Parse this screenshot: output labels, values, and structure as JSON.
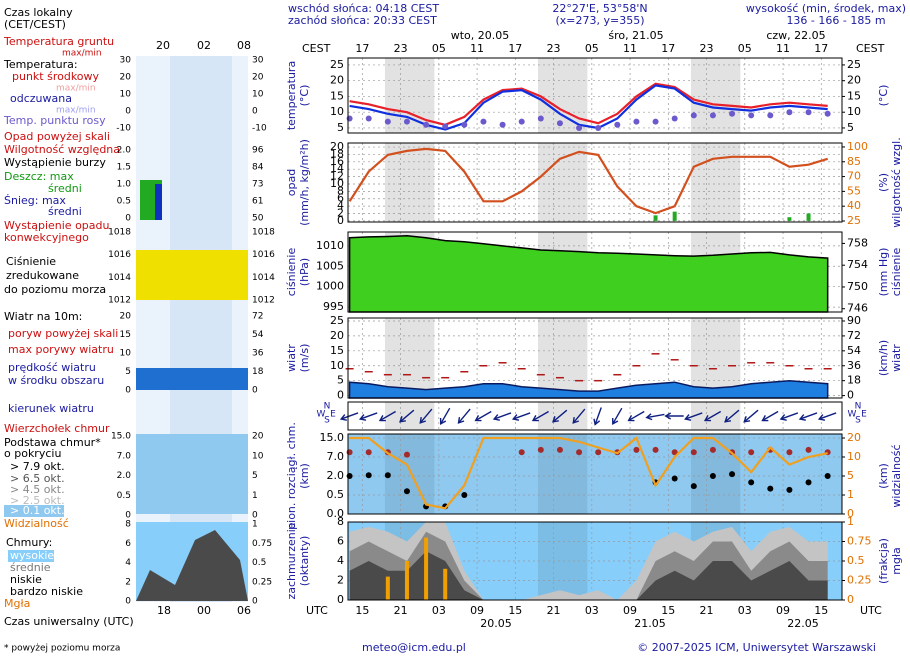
{
  "header": {
    "sunrise": "wschód słońca: 04:18 CEST",
    "sunset": "zachód słońca: 20:33 CEST",
    "coords": "22°27'E, 53°58'N",
    "grid": "(x=273, y=355)",
    "height_title": "wysokość (min, środek, max)",
    "height": "136 - 166 - 185 m",
    "local_time": "Czas lokalny",
    "local_zone": "(CET/CEST)",
    "day1": "wto, 20.05",
    "day2": "śro, 21.05",
    "day3": "czw, 22.05",
    "cest": "CEST",
    "utc": "UTC",
    "date1": "20.05",
    "date2": "21.05",
    "date3": "22.05",
    "email": "meteo@icm.edu.pl",
    "copyright": "© 2007-2025 ICM, Uniwersytet Warszawski",
    "utc_time": "Czas uniwersalny (UTC)",
    "footnote": "* powyżej poziomu morza"
  },
  "legend": {
    "top_times": [
      "20",
      "02",
      "08"
    ],
    "bottom_times": [
      "18",
      "00",
      "06"
    ],
    "ground_temp": "Temperatura gruntu",
    "maxmin": "max/min",
    "temp": "Temperatura:",
    "mid": "punkt środkowy",
    "perceived": "odczuwana",
    "dew": "Temp. punktu rosy",
    "over": "Opad powyżej skali",
    "humidity": "Wilgotność względna",
    "storm": "Wystąpienie burzy",
    "rain_max": "Deszcz: max",
    "avg": "średni",
    "snow_max": "Śnieg: max",
    "conv1": "Wystąpienie opadu",
    "conv2": "konwekcyjnego",
    "press1": "Ciśnienie",
    "press2": "zredukowane",
    "press3": "do poziomu morza",
    "wind": "Wiatr na 10m:",
    "gust_over": "poryw powyżej skali",
    "gust": "max porywy wiatru",
    "speed1": "prędkość wiatru",
    "speed2": "w środku obszaru",
    "dir": "kierunek wiatru",
    "tops": "Wierzchołek chmur",
    "base1": "Podstawa chmur*",
    "base2": "o pokryciu",
    "ok1": "> 7.9 okt.",
    "ok2": "> 6.5 okt.",
    "ok3": "> 4.5 okt.",
    "ok4": "> 2.5 okt.",
    "ok5": "> 0.1 okt.",
    "vis": "Widzialność",
    "clouds": "Chmury:",
    "high": "wysokie",
    "medium": "średnie",
    "low": "niskie",
    "vlow": "bardzo niskie",
    "fog": "Mgła",
    "compass": [
      "N",
      "W",
      "E",
      "S"
    ],
    "ticks": [
      {
        "left": [
          "30",
          "20",
          "10",
          "0",
          "-10"
        ],
        "right": [
          "30",
          "20",
          "10",
          "0",
          "-10"
        ]
      },
      {
        "left": [
          "2.0",
          "1.5",
          "1.0",
          "0.5",
          "0"
        ],
        "right": [
          "96",
          "84",
          "73",
          "61",
          "50"
        ]
      },
      {
        "left": [
          "1018",
          "1016",
          "1014",
          "1012"
        ],
        "right": [
          "1018",
          "1016",
          "1014",
          "1012"
        ]
      },
      {
        "left": [
          "20",
          "15",
          "10",
          "5",
          "0"
        ],
        "right": [
          "72",
          "54",
          "36",
          "18",
          "0"
        ]
      },
      {
        "left": [
          "15.0",
          "7.0",
          "2.0",
          "0.5",
          "0"
        ],
        "right": [
          "20",
          "10",
          "5",
          "1",
          "0"
        ]
      },
      {
        "left": [
          "8",
          "6",
          "4",
          "2",
          "0"
        ],
        "right": [
          "1",
          "0.75",
          "0.5",
          "0.25",
          "0"
        ]
      }
    ]
  },
  "chart_data": {
    "type": "meteogram",
    "x": [
      15,
      18,
      21,
      24,
      27,
      30,
      33,
      36,
      39,
      42,
      45,
      48,
      51,
      54,
      57,
      60,
      63,
      66,
      69,
      72,
      75,
      78,
      81,
      84,
      87,
      90
    ],
    "xlim": [
      14.75,
      92.25
    ],
    "xticks": [
      17,
      23,
      {
        "value": 29,
        "label": "05"
      },
      {
        "value": 35,
        "label": "11"
      },
      {
        "value": 41,
        "label": "17"
      },
      {
        "value": 47,
        "label": "23"
      },
      {
        "value": 53,
        "label": "05"
      },
      {
        "value": 59,
        "label": "11"
      },
      {
        "value": 65,
        "label": "17"
      },
      {
        "value": 71,
        "label": "23"
      },
      {
        "value": 77,
        "label": "05"
      },
      {
        "value": 83,
        "label": "11"
      },
      {
        "value": 89,
        "label": "17"
      }
    ],
    "x2ticks": [
      {
        "value": 17,
        "label": "15"
      },
      {
        "value": 23,
        "label": "21"
      },
      {
        "value": 29,
        "label": "03"
      },
      {
        "value": 35,
        "label": "09"
      },
      {
        "value": 41,
        "label": "15"
      },
      {
        "value": 47,
        "label": "21"
      },
      {
        "value": 53,
        "label": "03"
      },
      {
        "value": 59,
        "label": "09"
      },
      {
        "value": 65,
        "label": "15"
      },
      {
        "value": 71,
        "label": "21"
      },
      {
        "value": 77,
        "label": "03"
      },
      {
        "value": 83,
        "label": "09"
      },
      {
        "value": 89,
        "label": "15"
      }
    ],
    "night": [
      [
        20.55,
        28.3
      ],
      [
        44.55,
        52.3
      ],
      [
        68.55,
        76.3
      ]
    ],
    "grid": true,
    "panels": [
      {
        "ylabel": [
          "temperatura",
          "(°C)"
        ],
        "y2label": [
          "(°C)"
        ],
        "ylim": [
          3.4,
          27.2
        ],
        "yticks": [
          5,
          10,
          15,
          20,
          25
        ],
        "y2lim": [
          3.4,
          27.2
        ],
        "y2ticks": [
          5,
          10,
          15,
          20,
          25
        ],
        "background": "#ffffff",
        "series": [
          {
            "style": "line",
            "color": "#e8202a",
            "values": [
              13.5,
              12.5,
              11,
              10,
              7.5,
              6,
              8.5,
              14,
              17,
              17.5,
              15,
              11,
              8,
              6.5,
              9.5,
              15,
              19,
              18,
              14,
              12.5,
              12,
              11.5,
              12.5,
              13,
              12.5,
              12
            ]
          },
          {
            "style": "line",
            "color": "#1030e0",
            "values": [
              12,
              11,
              9.5,
              8.5,
              6,
              4.5,
              6.5,
              13,
              16.5,
              17,
              14,
              9.5,
              6,
              5,
              8,
              14,
              18.5,
              17.5,
              13,
              11.5,
              11,
              10.5,
              11.5,
              12,
              11.5,
              11
            ]
          },
          {
            "style": "dots",
            "color": "#6a5acd",
            "values": [
              8,
              8,
              7,
              7,
              6,
              5.5,
              6,
              7,
              6,
              7,
              8,
              6.5,
              5,
              5,
              6,
              7,
              7,
              8,
              9,
              9,
              9.5,
              9,
              9,
              10,
              10,
              9.5
            ]
          }
        ]
      },
      {
        "ylabel": [
          "opad",
          "(mm/h, kg/m²h)"
        ],
        "y2label": [
          "(%)",
          "wilgotność wzgl."
        ],
        "ylim": [
          -0.3,
          21.1
        ],
        "yticks": [
          0,
          2,
          4,
          6,
          8,
          10,
          12,
          14,
          16,
          18,
          20
        ],
        "y2lim": [
          24,
          104
        ],
        "y2ticks": [
          25,
          40,
          55,
          70,
          85,
          100
        ],
        "background": "#ffffff",
        "series": [
          {
            "style": "bars",
            "color": "#22aa22",
            "values": [
              0,
              0,
              0,
              0,
              0,
              0,
              0,
              0,
              0,
              0,
              0,
              0,
              0,
              0,
              0,
              0,
              1.5,
              2.5,
              0,
              0,
              0,
              0,
              0,
              1,
              2,
              0
            ]
          },
          {
            "style": "line",
            "axis": "y2",
            "color": "#d2501e",
            "values": [
              45,
              75,
              92,
              96,
              98,
              96,
              75,
              45,
              45,
              55,
              70,
              88,
              95,
              92,
              60,
              40,
              33,
              40,
              80,
              88,
              90,
              90,
              90,
              80,
              82,
              88
            ]
          }
        ]
      },
      {
        "ylabel": [
          "ciśnienie",
          "(hPa)"
        ],
        "y2label": [
          "(mm Hg)",
          "ciśnienie"
        ],
        "ylim": [
          993.8,
          1013.4
        ],
        "yticks": [
          995,
          1000,
          1005,
          1010
        ],
        "y2lim": [
          745.4,
          760.1
        ],
        "y2ticks": [
          746,
          750,
          754,
          758
        ],
        "background": "#ffffff",
        "series": [
          {
            "style": "area",
            "color": "#3fcf1f",
            "stroke": "#000000",
            "values": [
              1012,
              1012.2,
              1012.3,
              1012.5,
              1012,
              1011.3,
              1011,
              1010.5,
              1010,
              1009.5,
              1009,
              1008.8,
              1008.6,
              1008.3,
              1008.2,
              1008,
              1007.8,
              1007.6,
              1007.5,
              1007.7,
              1008,
              1008.3,
              1008.4,
              1007.8,
              1007.3,
              1007
            ]
          }
        ]
      },
      {
        "ylabel": [
          "wiatr",
          "(m/s)"
        ],
        "y2label": [
          "(km/h)",
          "wiatr"
        ],
        "ylim": [
          -0.8,
          26
        ],
        "yticks": [
          0,
          5,
          10,
          15,
          20,
          25
        ],
        "y2lim": [
          -2.9,
          93.6
        ],
        "y2ticks": [
          0,
          18,
          36,
          54,
          72,
          90
        ],
        "background": "#ffffff",
        "series": [
          {
            "style": "area",
            "color": "#1e7fe0",
            "stroke": "#0a1a60",
            "values": [
              4.5,
              4,
              3,
              2.5,
              2,
              2.5,
              3,
              4,
              4,
              3,
              2.5,
              2,
              1.5,
              1.5,
              2.5,
              3.5,
              4,
              4.5,
              3,
              2.5,
              3,
              4,
              4.5,
              5,
              4.5,
              4
            ]
          },
          {
            "style": "dashes",
            "color": "#b01818",
            "values": [
              9,
              8,
              7,
              7,
              6,
              6,
              8,
              10,
              11,
              9,
              7,
              6,
              5,
              5,
              7,
              10,
              14,
              12,
              10,
              9,
              10,
              11,
              11,
              10,
              9,
              9
            ]
          }
        ]
      },
      {
        "background": "#ffffff",
        "series": [
          {
            "style": "arrows",
            "color": "#102080",
            "values": [
              250,
              250,
              240,
              230,
              220,
              210,
              220,
              240,
              250,
              250,
              240,
              230,
              220,
              200,
              210,
              240,
              260,
              270,
              250,
              240,
              230,
              230,
              240,
              250,
              250,
              250
            ]
          }
        ]
      },
      {
        "ylabel": [
          "pion. rozciągł. chm.",
          "(km)"
        ],
        "y2label": [
          "(km)",
          "widzialność"
        ],
        "scale": "piecewise",
        "ylim": [
          0,
          15
        ],
        "yticks": [
          {
            "value": 0,
            "label": "0.0"
          },
          0.5,
          {
            "value": 2,
            "label": "2.0"
          },
          {
            "value": 7,
            "label": "7.0"
          },
          {
            "value": 15,
            "label": "15.0"
          }
        ],
        "y2lim": [
          0,
          20
        ],
        "y2ticks": [
          0,
          1,
          5,
          10,
          20
        ],
        "background": "#8fc9f0",
        "series": [
          {
            "style": "dots",
            "color": "#a52a2a",
            "values": [
              9,
              9,
              9,
              8,
              null,
              null,
              null,
              null,
              null,
              9,
              10,
              10,
              9,
              9,
              9,
              10,
              10,
              9,
              9,
              10,
              9,
              9,
              10,
              9,
              10,
              9
            ]
          },
          {
            "style": "dots",
            "color": "#000000",
            "values": [
              2,
              2.2,
              2.2,
              0.8,
              0.2,
              0.2,
              0.5,
              null,
              null,
              null,
              null,
              null,
              null,
              null,
              null,
              null,
              1.5,
              1.8,
              1.2,
              2,
              2.5,
              1.5,
              1,
              0.9,
              1.5,
              2
            ]
          },
          {
            "style": "line",
            "axis": "y2",
            "color": "#f0a020",
            "values": [
              20,
              20,
              12,
              8,
              0.5,
              0.3,
              3,
              20,
              20,
              20,
              20,
              20,
              18,
              15,
              12,
              20,
              3,
              10,
              20,
              20,
              12,
              6,
              15,
              8,
              10,
              12
            ]
          }
        ]
      },
      {
        "ylabel": [
          "zachmurzenie",
          "(oktanty)"
        ],
        "y2label": [
          "(frakcja)",
          "mgła"
        ],
        "ylim": [
          0,
          8
        ],
        "yticks": [
          0,
          2,
          4,
          6,
          8
        ],
        "y2lim": [
          0,
          1
        ],
        "y2ticks": [
          0,
          0.25,
          0.5,
          0.75,
          1
        ],
        "background": "#87cefa",
        "series": [
          {
            "style": "area",
            "color": "#c4c4c4",
            "values": [
              7,
              7.5,
              7,
              6,
              8,
              8,
              3,
              0,
              0,
              0,
              0.5,
              1,
              0.5,
              1,
              0,
              2,
              6,
              7,
              6,
              7,
              7.5,
              5,
              7,
              7.5,
              6,
              6
            ]
          },
          {
            "style": "area",
            "color": "#8a8a8a",
            "values": [
              5,
              6,
              5,
              4,
              7,
              6,
              2,
              0,
              0,
              0,
              0,
              0,
              0,
              0,
              0,
              0,
              4,
              5,
              4,
              6,
              6,
              3,
              5,
              6,
              4,
              4
            ]
          },
          {
            "style": "area",
            "color": "#4a4a4a",
            "values": [
              3,
              4,
              3,
              3,
              5,
              4,
              1,
              0,
              0,
              0,
              0,
              0,
              0,
              0,
              0,
              0,
              2,
              3,
              2,
              4,
              4,
              2,
              3,
              4,
              2,
              2
            ]
          },
          {
            "style": "bars",
            "axis": "y2",
            "color": "#f0a000",
            "values": [
              0,
              0,
              0.3,
              0.5,
              0.8,
              0.4,
              0,
              0,
              0,
              0,
              0,
              0,
              0,
              0,
              0,
              0,
              0,
              0,
              0,
              0,
              0,
              0,
              0,
              0,
              0,
              0
            ]
          }
        ]
      }
    ]
  }
}
